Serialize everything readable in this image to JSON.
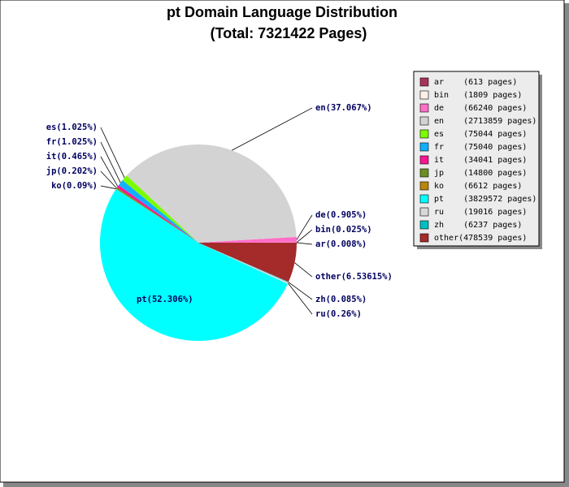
{
  "chart_data": {
    "type": "pie",
    "title": "pt Domain Language Distribution",
    "subtitle": "(Total: 7321422 Pages)",
    "categories": [
      "ar",
      "bin",
      "de",
      "en",
      "es",
      "fr",
      "it",
      "jp",
      "ko",
      "pt",
      "ru",
      "zh",
      "other"
    ],
    "values": [
      0.008,
      0.025,
      0.905,
      37.067,
      1.025,
      1.025,
      0.465,
      0.202,
      0.09,
      52.306,
      0.26,
      0.085,
      6.53615
    ],
    "value_labels": [
      "ar(0.008%)",
      "bin(0.025%)",
      "de(0.905%)",
      "en(37.067%)",
      "es(1.025%)",
      "fr(1.025%)",
      "it(0.465%)",
      "jp(0.202%)",
      "ko(0.09%)",
      "pt(52.306%)",
      "ru(0.26%)",
      "zh(0.085%)",
      "other(6.53615%)"
    ],
    "legend_labels": [
      "ar    (613 pages)",
      "bin   (1809 pages)",
      "de    (66240 pages)",
      "en    (2713859 pages)",
      "es    (75044 pages)",
      "fr    (75040 pages)",
      "it    (34041 pages)",
      "jp    (14800 pages)",
      "ko    (6612 pages)",
      "pt    (3829572 pages)",
      "ru    (19016 pages)",
      "zh    (6237 pages)",
      "other(478539 pages)"
    ],
    "colors": [
      "#a8325a",
      "#fff0e6",
      "#ff6ec7",
      "#d3d3d3",
      "#7cfc00",
      "#10b0ff",
      "#ff1493",
      "#6b8e23",
      "#b8860b",
      "#00ffff",
      "#d8d8d8",
      "#00bfbf",
      "#a52a2a"
    ]
  }
}
